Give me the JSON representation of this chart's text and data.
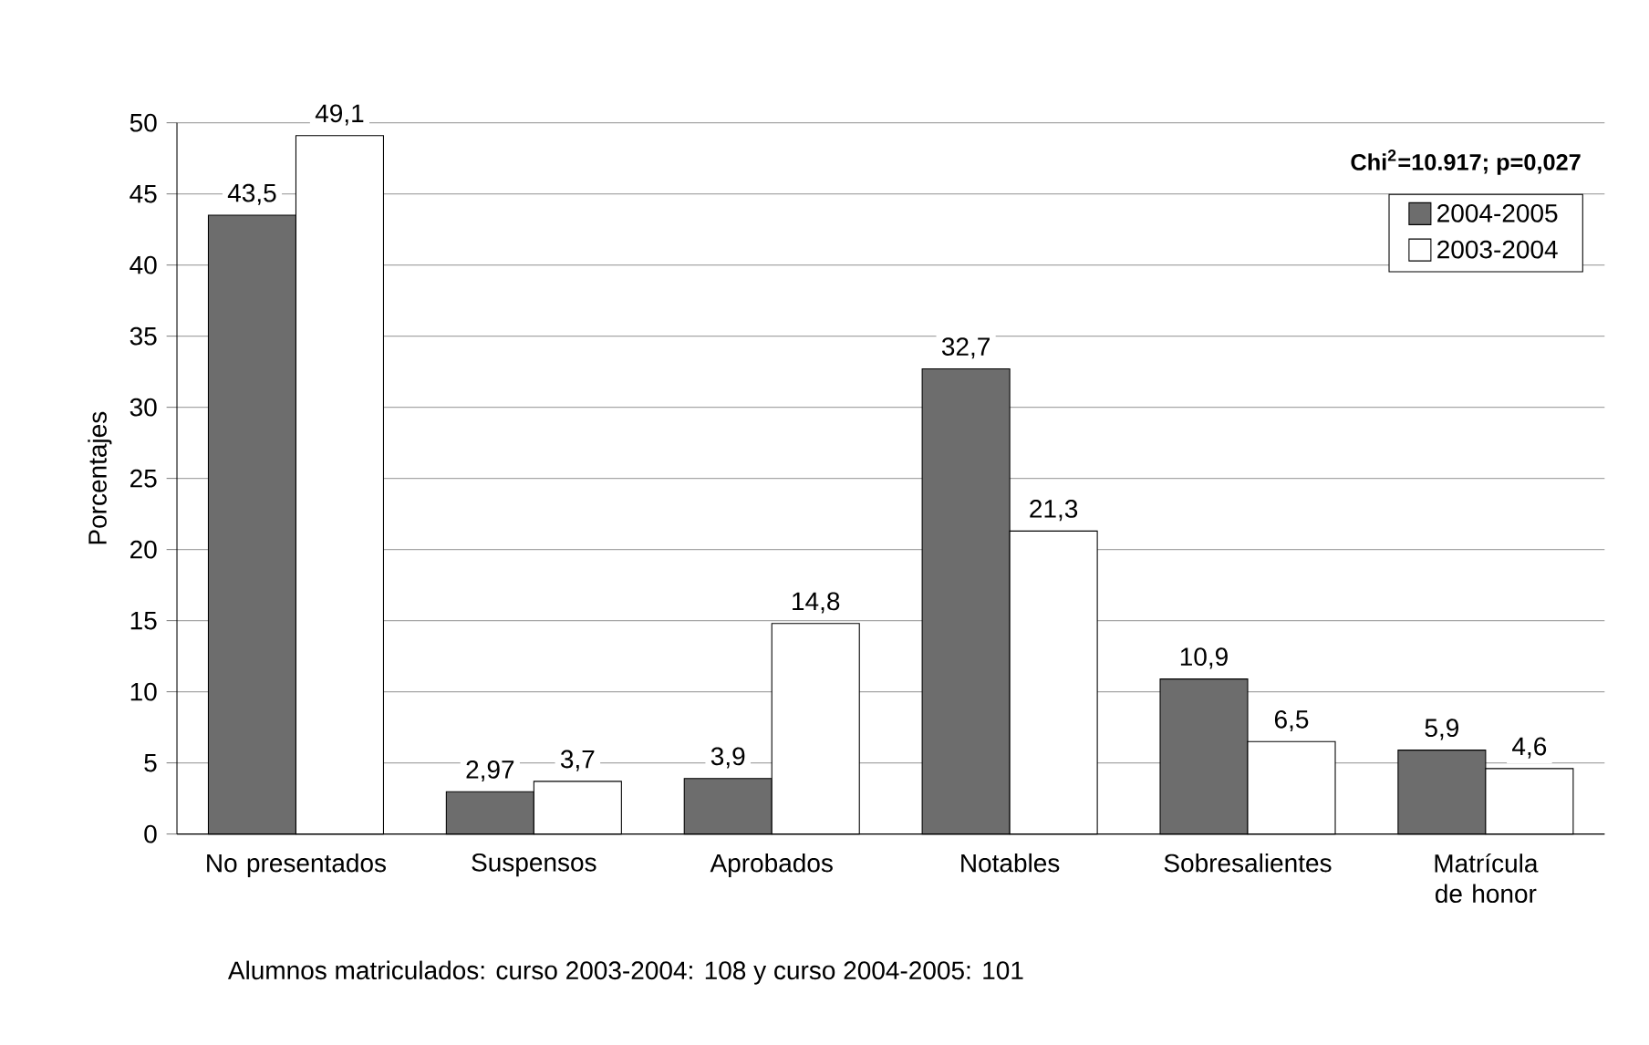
{
  "chart_data": {
    "type": "bar",
    "ylabel": "Porcentajes",
    "categories": [
      "No presentados",
      "Suspensos",
      "Aprobados",
      "Notables",
      "Sobresalientes",
      "Matrícula de honor"
    ],
    "series": [
      {
        "name": "2004-2005",
        "color": "#6d6d6d",
        "values": [
          43.5,
          2.97,
          3.9,
          32.7,
          10.9,
          5.9
        ],
        "value_labels": [
          "43,5",
          "2,97",
          "3,9",
          "32,7",
          "10,9",
          "5,9"
        ]
      },
      {
        "name": "2003-2004",
        "color": "#ffffff",
        "values": [
          49.1,
          3.7,
          14.8,
          21.3,
          6.5,
          4.6
        ],
        "value_labels": [
          "49,1",
          "3,7",
          "14,8",
          "21,3",
          "6,5",
          "4,6"
        ]
      }
    ],
    "ylim": [
      0,
      50
    ],
    "yticks": [
      0,
      5,
      10,
      15,
      20,
      25,
      30,
      35,
      40,
      45,
      50
    ],
    "grid": "y",
    "legend": "top right",
    "annotations": [
      "Chi$^{2}$=10.917; p=0,027",
      "Alumnos matriculados: curso 2003-2004: 108 y curso 2004-2005: 101"
    ]
  }
}
